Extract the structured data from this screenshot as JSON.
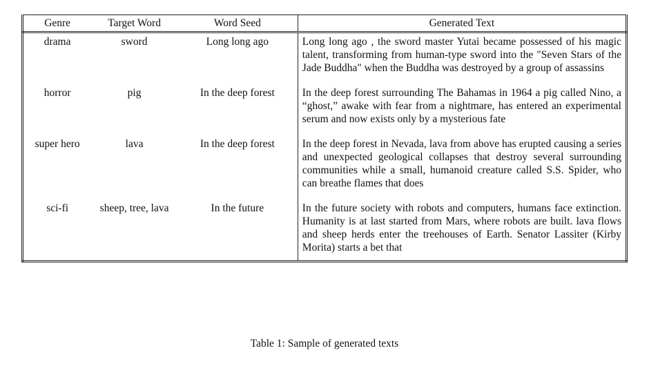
{
  "table": {
    "headers": [
      "Genre",
      "Target Word",
      "Word Seed",
      "Generated Text"
    ],
    "rows": [
      {
        "genre": "drama",
        "target": "sword",
        "seed": "Long long ago",
        "text": "Long long ago , the sword master Yutai became possessed of his magic talent, transforming from human-type sword into the \"Seven Stars of the Jade Buddha\" when the Buddha was destroyed by a group of assassins"
      },
      {
        "genre": "horror",
        "target": "pig",
        "seed": "In the deep forest",
        "text": "In the deep forest surrounding The Bahamas in 1964 a pig called Nino, a “ghost,” awake with fear from a nightmare, has entered an experimental serum and now exists only by a mysterious fate"
      },
      {
        "genre": "super hero",
        "target": "lava",
        "seed": "In the deep forest",
        "text": "In the deep forest in Nevada, lava from above has erupted causing a series and unexpected geological collapses that destroy several surrounding communities while a small, humanoid creature called S.S. Spider, who can breathe flames that does"
      },
      {
        "genre": "sci-fi",
        "target": "sheep, tree, lava",
        "seed": "In the future",
        "text": "In the future society with robots and computers, humans face extinction.  Humanity is at last started from Mars, where robots are built. lava flows and sheep herds enter the treehouses of Earth. Senator Lassiter (Kirby Morita) starts a bet that"
      }
    ]
  },
  "caption": "Table 1: Sample of generated texts"
}
